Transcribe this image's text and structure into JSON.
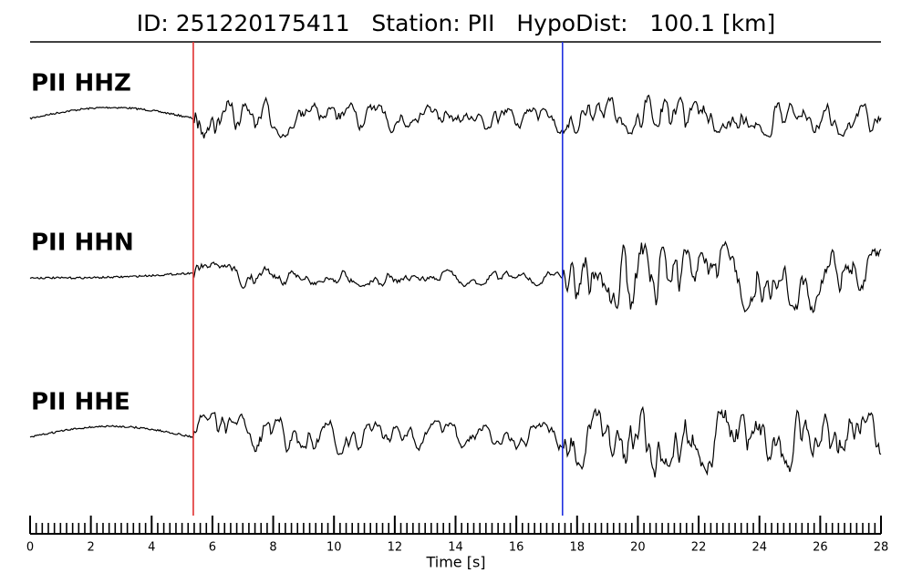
{
  "chart_data": {
    "type": "seismogram",
    "title": "ID: 251220175411   Station: PII   HypoDist:   100.1 [km]",
    "channels": [
      "PII HHZ",
      "PII HHN",
      "PII HHE"
    ],
    "channel_color": "#4a9a0a",
    "trace_color": "#000000",
    "x_label": "Time [s]",
    "xlim": [
      0,
      28
    ],
    "xticks": [
      0,
      2,
      4,
      6,
      8,
      10,
      12,
      14,
      16,
      18,
      20,
      22,
      24,
      26,
      28
    ],
    "picks": [
      {
        "time": 5.37,
        "color": "#e03030"
      },
      {
        "time": 17.52,
        "color": "#2030e0"
      }
    ]
  }
}
